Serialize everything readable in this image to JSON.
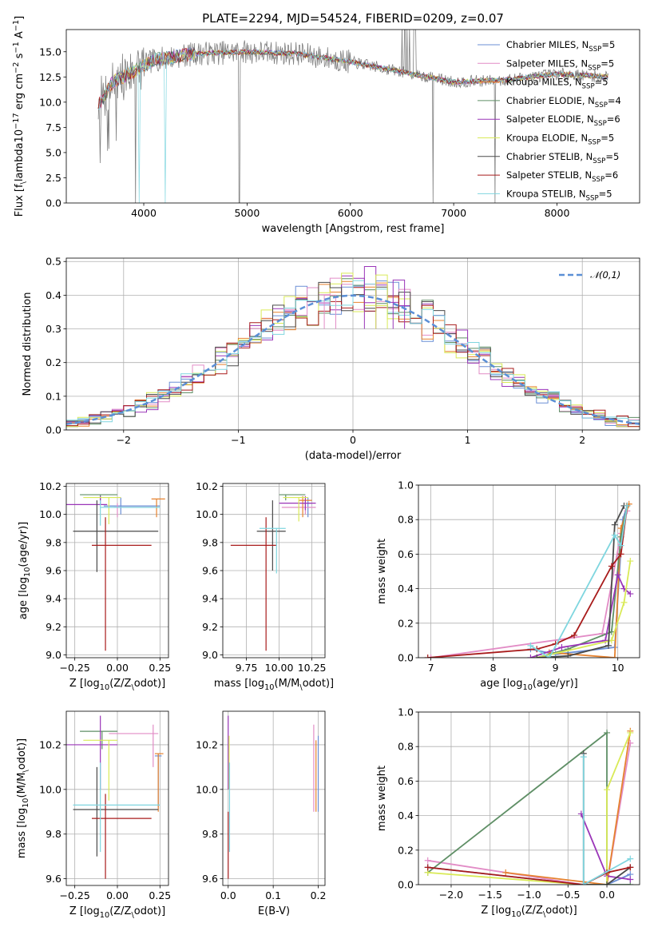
{
  "title": "PLATE=2294, MJD=54524, FIBERID=0209, z=0.07",
  "series": [
    {
      "name": "Chabrier MILES, N$_{SSP}$=5",
      "color": "#6b8fd6"
    },
    {
      "name": "Salpeter MILES, N$_{SSP}$=5",
      "color": "#e28cc6"
    },
    {
      "name": "Kroupa MILES, N$_{SSP}$=5",
      "color": "#e6822f"
    },
    {
      "name": "Chabrier ELODIE, N$_{SSP}$=4",
      "color": "#5f8f66"
    },
    {
      "name": "Salpeter ELODIE, N$_{SSP}$=6",
      "color": "#9a35b8"
    },
    {
      "name": "Kroupa ELODIE, N$_{SSP}$=5",
      "color": "#d9ea57"
    },
    {
      "name": "Chabrier STELIB, N$_{SSP}$=5",
      "color": "#4a4a4a"
    },
    {
      "name": "Salpeter STELIB, N$_{SSP}$=6",
      "color": "#a81b1b"
    },
    {
      "name": "Kroupa STELIB, N$_{SSP}$=5",
      "color": "#7fd6df"
    }
  ],
  "chart_data": [
    {
      "type": "line",
      "id": "spectrum",
      "xlabel": "wavelength [Angstrom, rest frame]",
      "ylabel": "Flux [f$_\\lambda$10$^{-17}$ erg cm$^{-2}$ s$^{-1}$ A$^{-1}$]",
      "xlim": [
        3250,
        8800
      ],
      "ylim": [
        0,
        17.2
      ],
      "xticks": [
        4000,
        5000,
        6000,
        7000,
        8000
      ],
      "yticks": [
        0.0,
        2.5,
        5.0,
        7.5,
        10.0,
        12.5,
        15.0
      ],
      "data_color": "#808080",
      "continuum": {
        "x": [
          3550,
          3700,
          3900,
          4100,
          4500,
          5000,
          5500,
          6000,
          6500,
          7000,
          7500,
          8000,
          8500
        ],
        "y": [
          9.5,
          12.0,
          13.0,
          14.2,
          14.8,
          15.0,
          14.8,
          14.0,
          13.0,
          12.0,
          12.2,
          12.8,
          12.5
        ]
      },
      "legend_loc": "upper right"
    },
    {
      "type": "step",
      "id": "residuals",
      "xlabel": "(data-model)/error",
      "ylabel": "Normed distribution",
      "xlim": [
        -2.5,
        2.5
      ],
      "ylim": [
        0,
        0.51
      ],
      "xticks": [
        -2,
        -1,
        0,
        1,
        2
      ],
      "yticks": [
        0.0,
        0.1,
        0.2,
        0.3,
        0.4,
        0.5
      ],
      "bin_width": 0.1,
      "gaussian_label": "$\\mathcal{N}(0,1)$",
      "gaussian_color": "#5b8fd6",
      "legend_loc": "upper right",
      "bins_left_edge": -2.5,
      "bins_count": 50,
      "highlight_bars": {
        "x": [
          0.1,
          0.2,
          0.35,
          -0.25
        ],
        "y": [
          0.485,
          0.46,
          0.445,
          0.4
        ]
      }
    },
    {
      "type": "errorbar",
      "id": "age-vs-Z",
      "xlabel": "Z [log$_{10}$(Z/Z$_\\odot$)]",
      "ylabel": "age  [log$_{10}$(age/yr)]",
      "xlim": [
        -0.3,
        0.3
      ],
      "ylim": [
        8.98,
        10.22
      ],
      "xticks": [
        -0.25,
        0.0,
        0.25
      ],
      "yticks": [
        9.0,
        9.2,
        9.4,
        9.6,
        9.8,
        10.0,
        10.2
      ],
      "points": [
        {
          "s": 0,
          "x": 0.02,
          "xlo": -0.08,
          "xhi": 0.25,
          "y": 10.06,
          "ylo": 10.0,
          "yhi": 10.12
        },
        {
          "s": 1,
          "x": 0.0,
          "xlo": -0.02,
          "xhi": 0.22,
          "y": 10.05,
          "ylo": 9.98,
          "yhi": 10.08
        },
        {
          "s": 2,
          "x": 0.23,
          "xlo": 0.2,
          "xhi": 0.28,
          "y": 10.11,
          "ylo": 9.98,
          "yhi": 10.11
        },
        {
          "s": 3,
          "x": -0.1,
          "xlo": -0.22,
          "xhi": 0.0,
          "y": 10.14,
          "ylo": 10.1,
          "yhi": 10.14
        },
        {
          "s": 4,
          "x": -0.1,
          "xlo": -0.3,
          "xhi": -0.06,
          "y": 10.07,
          "ylo": 10.07,
          "yhi": 10.13
        },
        {
          "s": 5,
          "x": -0.05,
          "xlo": -0.2,
          "xhi": 0.02,
          "y": 10.12,
          "ylo": 9.93,
          "yhi": 10.12
        },
        {
          "s": 6,
          "x": -0.12,
          "xlo": -0.26,
          "xhi": 0.24,
          "y": 9.88,
          "ylo": 9.59,
          "yhi": 10.1
        },
        {
          "s": 7,
          "x": -0.07,
          "xlo": -0.15,
          "xhi": 0.2,
          "y": 9.78,
          "ylo": 9.03,
          "yhi": 9.98
        },
        {
          "s": 8,
          "x": -0.1,
          "xlo": -0.1,
          "xhi": 0.25,
          "y": 10.05,
          "ylo": 9.92,
          "yhi": 10.1
        }
      ]
    },
    {
      "type": "errorbar",
      "id": "age-vs-mass",
      "xlabel": "mass [log$_{10}$(M/M$_\\odot$)]",
      "ylabel": "",
      "xlim": [
        9.57,
        10.35
      ],
      "ylim": [
        8.98,
        10.22
      ],
      "xticks": [
        9.75,
        10.0,
        10.25
      ],
      "yticks": [
        9.0,
        9.2,
        9.4,
        9.6,
        9.8,
        10.0,
        10.2
      ],
      "points": [
        {
          "s": 0,
          "x": 10.22,
          "xlo": 10.18,
          "xhi": 10.25,
          "y": 10.08,
          "ylo": 9.98,
          "yhi": 10.12
        },
        {
          "s": 1,
          "x": 10.2,
          "xlo": 10.02,
          "xhi": 10.28,
          "y": 10.05,
          "ylo": 10.0,
          "yhi": 10.1
        },
        {
          "s": 2,
          "x": 10.18,
          "xlo": 10.15,
          "xhi": 10.25,
          "y": 10.1,
          "ylo": 9.98,
          "yhi": 10.13
        },
        {
          "s": 3,
          "x": 10.05,
          "xlo": 10.0,
          "xhi": 10.2,
          "y": 10.14,
          "ylo": 10.1,
          "yhi": 10.14
        },
        {
          "s": 4,
          "x": 10.2,
          "xlo": 10.0,
          "xhi": 10.28,
          "y": 10.08,
          "ylo": 10.03,
          "yhi": 10.13
        },
        {
          "s": 5,
          "x": 10.15,
          "xlo": 10.03,
          "xhi": 10.22,
          "y": 10.12,
          "ylo": 9.95,
          "yhi": 10.12
        },
        {
          "s": 6,
          "x": 9.95,
          "xlo": 9.83,
          "xhi": 10.05,
          "y": 9.88,
          "ylo": 9.6,
          "yhi": 10.1
        },
        {
          "s": 7,
          "x": 9.9,
          "xlo": 9.63,
          "xhi": 9.98,
          "y": 9.78,
          "ylo": 9.03,
          "yhi": 9.98
        },
        {
          "s": 8,
          "x": 9.98,
          "xlo": 9.85,
          "xhi": 10.05,
          "y": 9.9,
          "ylo": 9.58,
          "yhi": 9.9
        }
      ]
    },
    {
      "type": "line",
      "id": "massweight-vs-age",
      "xlabel": "age  [log$_{10}$(age/yr)]",
      "ylabel": "mass weight",
      "xlim": [
        6.8,
        10.35
      ],
      "ylim": [
        0,
        1.0
      ],
      "xticks": [
        7,
        8,
        9,
        10
      ],
      "yticks": [
        0.0,
        0.2,
        0.4,
        0.6,
        0.8,
        1.0
      ],
      "lines": [
        {
          "s": 0,
          "x": [
            8.6,
            9.0,
            9.95,
            10.08,
            10.15
          ],
          "y": [
            0.05,
            0.02,
            0.06,
            0.8,
            0.88
          ]
        },
        {
          "s": 1,
          "x": [
            7.0,
            9.75,
            10.05,
            10.15
          ],
          "y": [
            0.0,
            0.14,
            0.72,
            0.85
          ]
        },
        {
          "s": 2,
          "x": [
            8.9,
            9.95,
            10.05,
            10.18
          ],
          "y": [
            0.03,
            0.0,
            0.75,
            0.89
          ]
        },
        {
          "s": 3,
          "x": [
            8.7,
            9.2,
            9.9,
            10.05,
            10.15
          ],
          "y": [
            0.0,
            0.05,
            0.15,
            0.7,
            0.88
          ]
        },
        {
          "s": 4,
          "x": [
            8.6,
            9.1,
            9.8,
            10.0,
            10.1,
            10.2
          ],
          "y": [
            0.0,
            0.06,
            0.1,
            0.48,
            0.4,
            0.37
          ]
        },
        {
          "s": 5,
          "x": [
            8.7,
            9.9,
            10.1,
            10.2
          ],
          "y": [
            0.0,
            0.1,
            0.32,
            0.56
          ]
        },
        {
          "s": 6,
          "x": [
            8.7,
            9.2,
            9.85,
            9.95,
            10.1
          ],
          "y": [
            0.0,
            0.01,
            0.07,
            0.77,
            0.88
          ]
        },
        {
          "s": 7,
          "x": [
            6.95,
            8.7,
            9.0,
            9.3,
            9.9,
            10.05,
            10.15
          ],
          "y": [
            0.0,
            0.05,
            0.08,
            0.13,
            0.53,
            0.6,
            0.88
          ]
        },
        {
          "s": 8,
          "x": [
            8.6,
            8.9,
            9.95,
            10.05,
            10.15
          ],
          "y": [
            0.07,
            0.0,
            0.71,
            0.65,
            0.88
          ]
        }
      ]
    },
    {
      "type": "errorbar",
      "id": "mass-vs-Z",
      "xlabel": "Z [log$_{10}$(Z/Z$_\\odot$)]",
      "ylabel": "mass [log$_{10}$(M/M$_\\odot$)]",
      "xlim": [
        -0.3,
        0.3
      ],
      "ylim": [
        9.57,
        10.35
      ],
      "xticks": [
        -0.25,
        0.0,
        0.25
      ],
      "yticks": [
        9.6,
        9.8,
        10.0,
        10.2
      ],
      "points": [
        {
          "s": 0,
          "x": 0.24,
          "xlo": 0.22,
          "xhi": 0.26,
          "y": 10.15,
          "ylo": 9.92,
          "yhi": 10.16
        },
        {
          "s": 1,
          "x": 0.21,
          "xlo": -0.05,
          "xhi": 0.24,
          "y": 10.25,
          "ylo": 10.1,
          "yhi": 10.29
        },
        {
          "s": 2,
          "x": 0.24,
          "xlo": 0.22,
          "xhi": 0.27,
          "y": 10.16,
          "ylo": 9.9,
          "yhi": 10.16
        },
        {
          "s": 3,
          "x": -0.09,
          "xlo": -0.22,
          "xhi": 0.0,
          "y": 10.26,
          "ylo": 10.18,
          "yhi": 10.26
        },
        {
          "s": 4,
          "x": -0.1,
          "xlo": -0.3,
          "xhi": 0.0,
          "y": 10.2,
          "ylo": 10.0,
          "yhi": 10.33
        },
        {
          "s": 5,
          "x": -0.05,
          "xlo": -0.2,
          "xhi": 0.0,
          "y": 10.22,
          "ylo": 9.95,
          "yhi": 10.22
        },
        {
          "s": 6,
          "x": -0.12,
          "xlo": -0.26,
          "xhi": 0.24,
          "y": 9.91,
          "ylo": 9.7,
          "yhi": 10.1
        },
        {
          "s": 7,
          "x": -0.07,
          "xlo": -0.15,
          "xhi": 0.2,
          "y": 9.87,
          "ylo": 9.6,
          "yhi": 9.98
        },
        {
          "s": 8,
          "x": -0.1,
          "xlo": -0.26,
          "xhi": 0.25,
          "y": 9.93,
          "ylo": 9.72,
          "yhi": 10.12
        }
      ]
    },
    {
      "type": "errorbar",
      "id": "mass-vs-ebv",
      "xlabel": "E(B-V)",
      "ylabel": "",
      "xlim": [
        -0.012,
        0.215
      ],
      "ylim": [
        9.57,
        10.35
      ],
      "xticks": [
        0.0,
        0.1,
        0.2
      ],
      "yticks": [
        9.6,
        9.8,
        10.0,
        10.2
      ],
      "points": [
        {
          "s": 0,
          "x": 0.2,
          "xlo": 0.2,
          "xhi": 0.2,
          "y": 10.1,
          "ylo": 9.9,
          "yhi": 10.24
        },
        {
          "s": 1,
          "x": 0.19,
          "xlo": 0.19,
          "xhi": 0.19,
          "y": 10.12,
          "ylo": 9.9,
          "yhi": 10.29
        },
        {
          "s": 2,
          "x": 0.195,
          "xlo": 0.195,
          "xhi": 0.195,
          "y": 10.1,
          "ylo": 9.9,
          "yhi": 10.22
        },
        {
          "s": 4,
          "x": 0.0,
          "xlo": 0.0,
          "xhi": 0.0,
          "y": 10.2,
          "ylo": 10.0,
          "yhi": 10.33
        },
        {
          "s": 5,
          "x": 0.002,
          "xlo": 0.002,
          "xhi": 0.002,
          "y": 10.15,
          "ylo": 10.0,
          "yhi": 10.24
        },
        {
          "s": 7,
          "x": 0.0,
          "xlo": 0.0,
          "xhi": 0.0,
          "y": 9.7,
          "ylo": 9.6,
          "yhi": 9.9
        },
        {
          "s": 8,
          "x": 0.003,
          "xlo": 0.003,
          "xhi": 0.003,
          "y": 9.9,
          "ylo": 9.72,
          "yhi": 10.12
        }
      ]
    },
    {
      "type": "line",
      "id": "massweight-vs-Z",
      "xlabel": "Z [log$_{10}$(Z/Z$_\\odot$)]",
      "ylabel": "mass weight",
      "xlim": [
        -2.42,
        0.42
      ],
      "ylim": [
        0,
        1.0
      ],
      "xticks": [
        -2.0,
        -1.5,
        -1.0,
        -0.5,
        0.0
      ],
      "yticks": [
        0.0,
        0.2,
        0.4,
        0.6,
        0.8,
        1.0
      ],
      "lines": [
        {
          "s": 0,
          "x": [
            -2.3,
            -0.3,
            0.0,
            0.3
          ],
          "y": [
            0.1,
            0.0,
            0.0,
            0.06
          ]
        },
        {
          "s": 1,
          "x": [
            -2.3,
            -0.3,
            0.0,
            0.3
          ],
          "y": [
            0.14,
            0.0,
            0.0,
            0.82
          ]
        },
        {
          "s": 2,
          "x": [
            -1.3,
            0.0,
            0.3
          ],
          "y": [
            0.07,
            0.0,
            0.89
          ]
        },
        {
          "s": 3,
          "x": [
            -2.3,
            0.0,
            0.0,
            0.3
          ],
          "y": [
            0.07,
            0.88,
            0.0,
            0.0
          ]
        },
        {
          "s": 4,
          "x": [
            -0.33,
            0.0,
            0.3
          ],
          "y": [
            0.41,
            0.05,
            0.03
          ]
        },
        {
          "s": 5,
          "x": [
            -2.3,
            -0.3,
            0.0,
            0.0,
            0.3
          ],
          "y": [
            0.07,
            0.0,
            0.0,
            0.55,
            0.88
          ]
        },
        {
          "s": 6,
          "x": [
            -0.3,
            -0.3,
            0.0,
            0.3
          ],
          "y": [
            0.76,
            0.0,
            0.0,
            0.1
          ]
        },
        {
          "s": 7,
          "x": [
            -2.3,
            -0.3,
            0.0,
            0.3
          ],
          "y": [
            0.1,
            0.0,
            0.07,
            0.1
          ]
        },
        {
          "s": 8,
          "x": [
            -0.3,
            -0.3,
            0.3
          ],
          "y": [
            0.74,
            0.0,
            0.15
          ]
        }
      ]
    }
  ]
}
